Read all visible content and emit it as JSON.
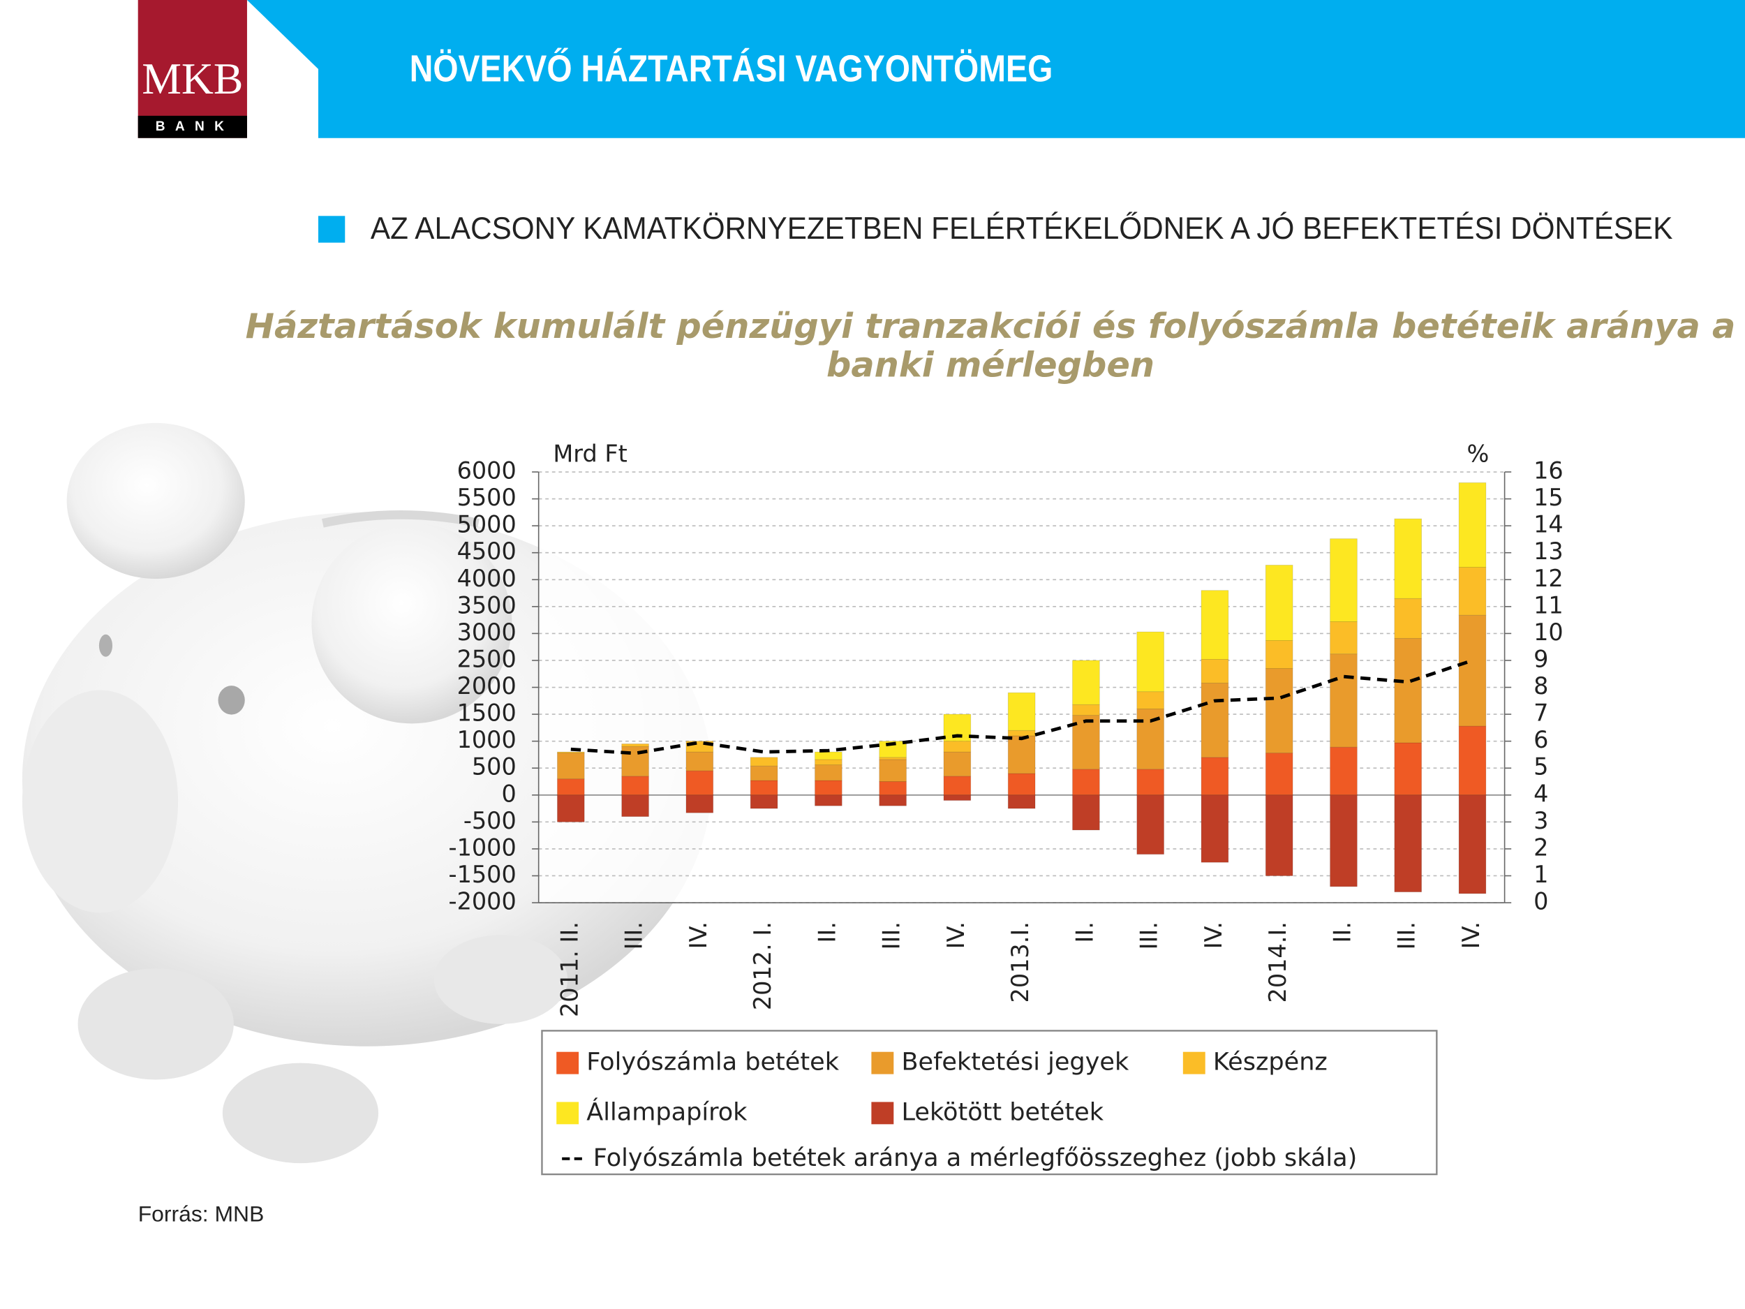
{
  "header": {
    "logo": "MKB",
    "logo_sub": "BANK",
    "title": "NÖVEKVŐ HÁZTARTÁSI VAGYONTÖMEG"
  },
  "bullet": "AZ ALACSONY KAMATKÖRNYEZETBEN FELÉRTÉKELŐDNEK A JÓ BEFEKTETÉSI DÖNTÉSEK",
  "chart_data": {
    "type": "bar",
    "stacked": true,
    "title": [
      "Háztartások kumulált pénzügyi tranzakciói és folyószámla betéteik aránya a",
      "banki mérlegben"
    ],
    "y_label": "Mrd Ft",
    "y2_label": "%",
    "categories": [
      "2011. II.",
      "III.",
      "IV.",
      "2012. I.",
      "II.",
      "III.",
      "IV.",
      "2013.I.",
      "II.",
      "III.",
      "IV.",
      "2014.I.",
      "II.",
      "III.",
      "IV."
    ],
    "series": [
      {
        "name": "Folyószámla betétek",
        "color": "#ef5a24",
        "values": [
          300,
          350,
          450,
          270,
          270,
          250,
          350,
          400,
          480,
          480,
          700,
          780,
          890,
          970,
          1280
        ]
      },
      {
        "name": "Befektetési jegyek",
        "color": "#e99b2c",
        "values": [
          480,
          550,
          350,
          270,
          290,
          410,
          450,
          700,
          1000,
          1120,
          1380,
          1570,
          1730,
          1940,
          2060
        ]
      },
      {
        "name": "Készpénz",
        "color": "#fbbd27",
        "values": [
          20,
          50,
          200,
          160,
          100,
          40,
          200,
          100,
          200,
          320,
          440,
          520,
          600,
          740,
          890
        ]
      },
      {
        "name": "Állampapírok",
        "color": "#fde721",
        "values": [
          0,
          0,
          0,
          0,
          140,
          300,
          500,
          700,
          820,
          1110,
          1280,
          1400,
          1540,
          1480,
          1570
        ]
      },
      {
        "name": "Lekötött betétek",
        "color": "#bf3e26",
        "values": [
          -500,
          -400,
          -330,
          -250,
          -200,
          -200,
          -100,
          -250,
          -650,
          -1100,
          -1250,
          -1500,
          -1700,
          -1800,
          -1830
        ]
      },
      {
        "name": "Folyószámla betétek aránya a mérlegfőösszeghez (jobb skála)",
        "type": "line",
        "axis": "y2",
        "color": "#000000",
        "dashed": true,
        "values": [
          5.7,
          5.55,
          5.95,
          5.6,
          5.65,
          5.9,
          6.2,
          6.1,
          6.75,
          6.75,
          7.5,
          7.6,
          8.4,
          8.2,
          9.0
        ]
      }
    ],
    "ylim": [
      -2000,
      6000
    ],
    "yticks": [
      -2000,
      -1500,
      -1000,
      -500,
      0,
      500,
      1000,
      1500,
      2000,
      2500,
      3000,
      3500,
      4000,
      4500,
      5000,
      5500,
      6000
    ],
    "y2lim": [
      0,
      16
    ],
    "y2ticks": [
      0,
      1,
      2,
      3,
      4,
      5,
      6,
      7,
      8,
      9,
      10,
      11,
      12,
      13,
      14,
      15,
      16
    ],
    "grid": true,
    "legend": "bottom"
  },
  "source": "Forrás: MNB"
}
